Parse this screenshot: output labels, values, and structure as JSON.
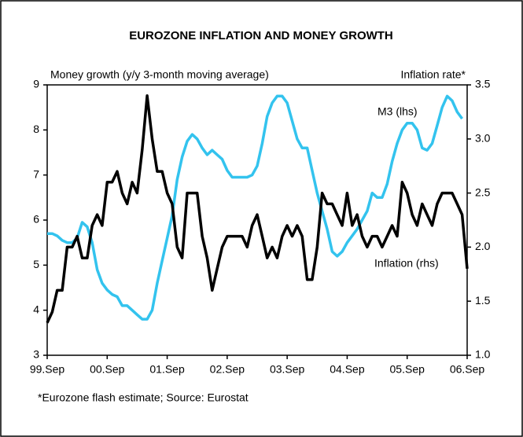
{
  "chart_data": {
    "type": "line",
    "title": "EUROZONE INFLATION AND MONEY GROWTH",
    "y_label": "Money growth (y/y 3-month moving average)",
    "y2_label": "Inflation rate*",
    "footnote": "*Eurozone flash estimate;  Source: Eurostat",
    "categories": [
      "99.Sep",
      null,
      null,
      null,
      null,
      null,
      null,
      null,
      null,
      null,
      null,
      null,
      "00.Sep",
      null,
      null,
      null,
      null,
      null,
      null,
      null,
      null,
      null,
      null,
      null,
      "01.Sep",
      null,
      null,
      null,
      null,
      null,
      null,
      null,
      null,
      null,
      null,
      null,
      "02.Sep",
      null,
      null,
      null,
      null,
      null,
      null,
      null,
      null,
      null,
      null,
      null,
      "03.Sep",
      null,
      null,
      null,
      null,
      null,
      null,
      null,
      null,
      null,
      null,
      null,
      "04.Sep",
      null,
      null,
      null,
      null,
      null,
      null,
      null,
      null,
      null,
      null,
      null,
      "05.Sep",
      null,
      null,
      null,
      null,
      null,
      null,
      null,
      null,
      null,
      null,
      null,
      "06.Sep"
    ],
    "ylim": [
      3,
      9
    ],
    "yticks": [
      3,
      4,
      5,
      6,
      7,
      8,
      9
    ],
    "y2lim": [
      1,
      3.5
    ],
    "y2ticks": [
      {
        "value": 1,
        "label": "1.0"
      },
      {
        "value": 1.5,
        "label": "1.5"
      },
      {
        "value": 2,
        "label": "2.0"
      },
      {
        "value": 2.5,
        "label": "2.5"
      },
      {
        "value": 3,
        "label": "3.0"
      },
      {
        "value": 3.5,
        "label": "3.5"
      }
    ],
    "series": [
      {
        "name": "M3 (lhs)",
        "color": "#33c3ee",
        "axis": "y",
        "values": [
          5.7,
          5.7,
          5.65,
          5.55,
          5.5,
          5.5,
          5.6,
          5.95,
          5.85,
          5.5,
          4.9,
          4.6,
          4.45,
          4.35,
          4.3,
          4.1,
          4.1,
          4.0,
          3.9,
          3.8,
          3.8,
          4.0,
          4.6,
          5.1,
          5.6,
          6.1,
          6.9,
          7.4,
          7.75,
          7.9,
          7.8,
          7.6,
          7.45,
          7.55,
          7.45,
          7.35,
          7.1,
          6.95,
          6.95,
          6.95,
          6.95,
          7.0,
          7.2,
          7.7,
          8.3,
          8.6,
          8.75,
          8.75,
          8.6,
          8.2,
          7.8,
          7.6,
          7.6,
          7.1,
          6.6,
          6.2,
          5.8,
          5.3,
          5.2,
          5.3,
          5.5,
          5.65,
          5.8,
          6.0,
          6.2,
          6.6,
          6.5,
          6.5,
          6.8,
          7.3,
          7.7,
          8.0,
          8.15,
          8.15,
          8.0,
          7.6,
          7.55,
          7.7,
          8.1,
          8.5,
          8.75,
          8.65,
          8.4,
          8.25,
          null
        ]
      },
      {
        "name": "Inflation (rhs)",
        "color": "#000000",
        "axis": "y2",
        "values": [
          1.3,
          1.4,
          1.6,
          1.6,
          2.0,
          2.0,
          2.1,
          1.9,
          1.9,
          2.2,
          2.3,
          2.2,
          2.6,
          2.6,
          2.7,
          2.5,
          2.4,
          2.6,
          2.5,
          2.9,
          3.4,
          3.0,
          2.7,
          2.7,
          2.5,
          2.4,
          2.0,
          1.9,
          2.5,
          2.5,
          2.5,
          2.1,
          1.9,
          1.6,
          1.8,
          2.0,
          2.1,
          2.1,
          2.1,
          2.1,
          2.0,
          2.2,
          2.3,
          2.1,
          1.9,
          2.0,
          1.9,
          2.1,
          2.2,
          2.1,
          2.2,
          2.1,
          1.7,
          1.7,
          2.0,
          2.5,
          2.4,
          2.4,
          2.3,
          2.2,
          2.5,
          2.2,
          2.3,
          2.1,
          2.0,
          2.1,
          2.1,
          2.0,
          2.1,
          2.2,
          2.1,
          2.6,
          2.5,
          2.3,
          2.2,
          2.4,
          2.3,
          2.2,
          2.4,
          2.5,
          2.5,
          2.5,
          2.4,
          2.3,
          1.8
        ]
      }
    ]
  }
}
